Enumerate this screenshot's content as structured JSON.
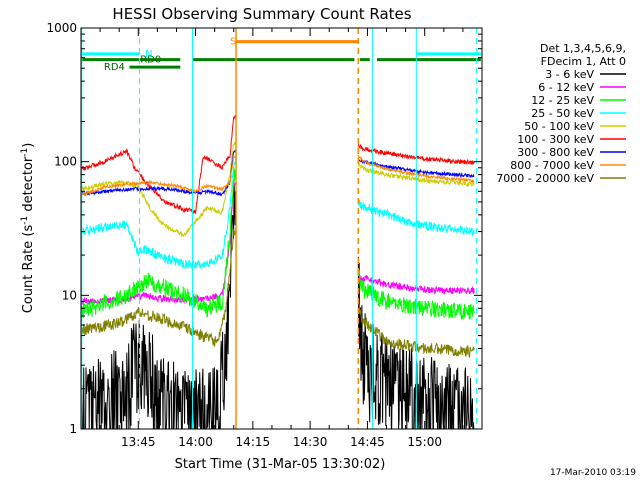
{
  "chart_data": {
    "type": "line",
    "title": "HESSI Observing Summary Count Rates",
    "xlabel": "Start Time (31-Mar-05 13:30:02)",
    "ylabel_main": "Count Rate (s",
    "ylabel_sup1": "-1",
    "ylabel_mid": " detector",
    "ylabel_sup2": "-1",
    "ylabel_end": ")",
    "yscale": "log",
    "ylim": [
      1,
      1000
    ],
    "xlim_minutes": [
      30,
      135
    ],
    "y_ticks": [
      {
        "value": 1,
        "label": "1"
      },
      {
        "value": 10,
        "label": "10"
      },
      {
        "value": 100,
        "label": "100"
      },
      {
        "value": 1000,
        "label": "1000"
      }
    ],
    "x_ticks": [
      {
        "value": 45,
        "label": "13:45"
      },
      {
        "value": 60,
        "label": "14:00"
      },
      {
        "value": 75,
        "label": "14:15"
      },
      {
        "value": 90,
        "label": "14:30"
      },
      {
        "value": 105,
        "label": "14:45"
      },
      {
        "value": 120,
        "label": "15:00"
      }
    ],
    "legend": {
      "placement": "right",
      "header": [
        "Det 1,3,4,5,6,9,",
        "FDecim 1, Att 0"
      ]
    },
    "series": [
      {
        "name": "3 - 6 keV",
        "color": "#000000",
        "noise": 0.9,
        "points": [
          [
            30,
            1.4
          ],
          [
            42,
            2.2
          ],
          [
            45,
            4.5
          ],
          [
            47,
            3.5
          ],
          [
            50,
            2.0
          ],
          [
            57,
            1.5
          ],
          [
            63,
            1.4
          ],
          [
            66,
            1.5
          ],
          [
            68,
            6
          ],
          [
            70,
            60
          ],
          [
            70.6,
            60
          ],
          [
            102.6,
            12
          ],
          [
            104,
            4.5
          ],
          [
            107,
            3.0
          ],
          [
            112,
            2.3
          ],
          [
            120,
            1.8
          ],
          [
            128,
            1.5
          ],
          [
            133,
            1.4
          ]
        ]
      },
      {
        "name": "6 - 12 keV",
        "color": "#ff00ff",
        "noise": 0.06,
        "points": [
          [
            30,
            9
          ],
          [
            42,
            9.3
          ],
          [
            47,
            10
          ],
          [
            50,
            9.5
          ],
          [
            57,
            9.2
          ],
          [
            63,
            9.5
          ],
          [
            67,
            10
          ],
          [
            69,
            25
          ],
          [
            70,
            70
          ],
          [
            70.6,
            70
          ],
          [
            102.6,
            13
          ],
          [
            104,
            13.5
          ],
          [
            110,
            12
          ],
          [
            120,
            11
          ],
          [
            133,
            10.8
          ]
        ]
      },
      {
        "name": "12 - 25 keV",
        "color": "#00ff00",
        "noise": 0.15,
        "points": [
          [
            30,
            7.5
          ],
          [
            38,
            9
          ],
          [
            42,
            10
          ],
          [
            47,
            13
          ],
          [
            50,
            12
          ],
          [
            57,
            10
          ],
          [
            63,
            8
          ],
          [
            67,
            9
          ],
          [
            69,
            30
          ],
          [
            70,
            80
          ],
          [
            70.6,
            80
          ],
          [
            102.6,
            14
          ],
          [
            104,
            11
          ],
          [
            110,
            9
          ],
          [
            120,
            8
          ],
          [
            133,
            7.5
          ]
        ]
      },
      {
        "name": "25 - 50 keV",
        "color": "#00ffff",
        "noise": 0.08,
        "points": [
          [
            30,
            30
          ],
          [
            38,
            33
          ],
          [
            42,
            34
          ],
          [
            45,
            21
          ],
          [
            47,
            22
          ],
          [
            50,
            20
          ],
          [
            57,
            17
          ],
          [
            63,
            17
          ],
          [
            67,
            20
          ],
          [
            69,
            45
          ],
          [
            70,
            100
          ],
          [
            70.6,
            100
          ],
          [
            102.6,
            50
          ],
          [
            104,
            46
          ],
          [
            110,
            40
          ],
          [
            120,
            33
          ],
          [
            133,
            30
          ]
        ]
      },
      {
        "name": "50 - 100 keV",
        "color": "#cccc00",
        "noise": 0.04,
        "points": [
          [
            30,
            62
          ],
          [
            36,
            68
          ],
          [
            42,
            70
          ],
          [
            45,
            65
          ],
          [
            48,
            45
          ],
          [
            52,
            33
          ],
          [
            57,
            28
          ],
          [
            63,
            45
          ],
          [
            67,
            42
          ],
          [
            69,
            80
          ],
          [
            70,
            140
          ],
          [
            70.6,
            140
          ],
          [
            102.6,
            95
          ],
          [
            104,
            88
          ],
          [
            110,
            80
          ],
          [
            120,
            72
          ],
          [
            133,
            68
          ]
        ]
      },
      {
        "name": "100 - 300 keV",
        "color": "#ff0000",
        "noise": 0.04,
        "points": [
          [
            30,
            88
          ],
          [
            36,
            100
          ],
          [
            42,
            120
          ],
          [
            44,
            90
          ],
          [
            47,
            70
          ],
          [
            52,
            50
          ],
          [
            57,
            44
          ],
          [
            60,
            42
          ],
          [
            62,
            110
          ],
          [
            67,
            90
          ],
          [
            69,
            110
          ],
          [
            70,
            220
          ],
          [
            70.6,
            220
          ],
          [
            102.6,
            130
          ],
          [
            104,
            125
          ],
          [
            110,
            115
          ],
          [
            120,
            105
          ],
          [
            133,
            98
          ]
        ]
      },
      {
        "name": "300 - 800 keV",
        "color": "#0000ff",
        "noise": 0.03,
        "points": [
          [
            30,
            57
          ],
          [
            36,
            60
          ],
          [
            42,
            62
          ],
          [
            48,
            63
          ],
          [
            55,
            62
          ],
          [
            60,
            58
          ],
          [
            63,
            60
          ],
          [
            67,
            57
          ],
          [
            69,
            70
          ],
          [
            70,
            120
          ],
          [
            70.6,
            120
          ],
          [
            102.6,
            105
          ],
          [
            104,
            100
          ],
          [
            110,
            92
          ],
          [
            120,
            83
          ],
          [
            133,
            78
          ]
        ]
      },
      {
        "name": "800 - 7000 keV",
        "color": "#ff8800",
        "noise": 0.025,
        "points": [
          [
            30,
            56
          ],
          [
            36,
            64
          ],
          [
            42,
            68
          ],
          [
            48,
            70
          ],
          [
            55,
            66
          ],
          [
            60,
            60
          ],
          [
            63,
            66
          ],
          [
            67,
            62
          ],
          [
            69,
            70
          ],
          [
            70,
            110
          ],
          [
            70.6,
            110
          ],
          [
            102.6,
            110
          ],
          [
            104,
            100
          ],
          [
            110,
            88
          ],
          [
            120,
            78
          ],
          [
            133,
            72
          ]
        ]
      },
      {
        "name": "7000 - 20000 keV",
        "color": "#808000",
        "noise": 0.1,
        "points": [
          [
            30,
            5.5
          ],
          [
            40,
            6.2
          ],
          [
            45,
            7.5
          ],
          [
            50,
            6.8
          ],
          [
            57,
            5.8
          ],
          [
            63,
            4.8
          ],
          [
            66,
            4.5
          ],
          [
            68,
            8
          ],
          [
            70,
            30
          ],
          [
            70.6,
            30
          ],
          [
            102.6,
            8
          ],
          [
            104,
            6.5
          ],
          [
            110,
            4.5
          ],
          [
            120,
            4
          ],
          [
            133,
            3.8
          ]
        ]
      }
    ],
    "vertical_lines": [
      {
        "x": 30.2,
        "color": "#00ffff",
        "style": "solid"
      },
      {
        "x": 45.3,
        "color": "#00ffff",
        "style": "dashed"
      },
      {
        "x": 59.2,
        "color": "#00ffff",
        "style": "solid"
      },
      {
        "x": 70.6,
        "color": "#ff8800",
        "style": "solid"
      },
      {
        "x": 102.6,
        "color": "#ff8800",
        "style": "dashed"
      },
      {
        "x": 106.3,
        "color": "#00ffff",
        "style": "solid"
      },
      {
        "x": 117.8,
        "color": "#00ffff",
        "style": "solid"
      },
      {
        "x": 133.6,
        "color": "#00ffff",
        "style": "dashed"
      }
    ],
    "flag_bars": [
      {
        "x0": 30.3,
        "x1": 45.3,
        "y": 640,
        "color": "#00ffff",
        "label": "N",
        "label_x": 46.8
      },
      {
        "x0": 117.8,
        "x1": 134.7,
        "y": 640,
        "color": "#00ffff"
      },
      {
        "x0": 70.6,
        "x1": 102.6,
        "y": 790,
        "color": "#ff8800",
        "label": "S",
        "label_x": 69.0
      },
      {
        "x0": 30.3,
        "x1": 56.0,
        "y": 580,
        "color": "#008000",
        "label": "RD0",
        "label_x": 45.5
      },
      {
        "x0": 59.2,
        "x1": 101.6,
        "y": 580,
        "color": "#008000"
      },
      {
        "x0": 103.0,
        "x1": 105.6,
        "y": 580,
        "color": "#008000"
      },
      {
        "x0": 107.5,
        "x1": 134.7,
        "y": 580,
        "color": "#008000"
      },
      {
        "x0": 42.7,
        "x1": 56.0,
        "y": 510,
        "color": "#008000",
        "label": "RD4",
        "label_x": 36.0
      }
    ]
  },
  "footer_timestamp": "17-Mar-2010 03:19"
}
